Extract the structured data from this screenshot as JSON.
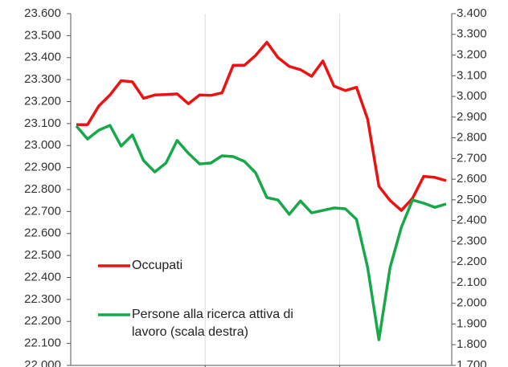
{
  "chart_data": {
    "type": "line",
    "categories": [
      null,
      null,
      null,
      null,
      null,
      null,
      null,
      null,
      null,
      null,
      null,
      null,
      null,
      null,
      null,
      null,
      null,
      null,
      null,
      null,
      null,
      null,
      null,
      null,
      null,
      null,
      null,
      null,
      null,
      null,
      null,
      null,
      null,
      null
    ],
    "series": [
      {
        "name": "Occupati",
        "color": "#ee1111",
        "values": [
          23095,
          23095,
          23180,
          23230,
          23295,
          23290,
          23215,
          23230,
          23232,
          23235,
          23190,
          23230,
          23228,
          23240,
          23365,
          23365,
          23410,
          23470,
          23400,
          23360,
          23345,
          23315,
          23385,
          23270,
          23250,
          23265,
          23120,
          22815,
          22750,
          22705,
          22760,
          22860,
          22855,
          22840
        ]
      },
      {
        "name": "Persone alla ricerca attiva di lavoro (scala destra)",
        "color": "#17a84a",
        "axis": "y2",
        "values": [
          2857,
          2794,
          2837,
          2860,
          2760,
          2814,
          2690,
          2635,
          2678,
          2787,
          2725,
          2674,
          2678,
          2713,
          2709,
          2686,
          2631,
          2511,
          2499,
          2430,
          2495,
          2437,
          2449,
          2461,
          2457,
          2406,
          2173,
          1824,
          2173,
          2367,
          2499,
          2484,
          2464,
          2480
        ]
      }
    ],
    "ylim": [
      22000,
      23600
    ],
    "yticks": [
      {
        "value": 22000,
        "label": "22.000"
      },
      {
        "value": 22100,
        "label": "22.100"
      },
      {
        "value": 22200,
        "label": "22.200"
      },
      {
        "value": 22300,
        "label": "22.300"
      },
      {
        "value": 22400,
        "label": "22.400"
      },
      {
        "value": 22500,
        "label": "22.500"
      },
      {
        "value": 22600,
        "label": "22.600"
      },
      {
        "value": 22700,
        "label": "22.700"
      },
      {
        "value": 22800,
        "label": "22.800"
      },
      {
        "value": 22900,
        "label": "22.900"
      },
      {
        "value": 23000,
        "label": "23.000"
      },
      {
        "value": 23100,
        "label": "23.100"
      },
      {
        "value": 23200,
        "label": "23.200"
      },
      {
        "value": 23300,
        "label": "23.300"
      },
      {
        "value": 23400,
        "label": "23.400"
      },
      {
        "value": 23500,
        "label": "23.500"
      },
      {
        "value": 23600,
        "label": "23.600"
      }
    ],
    "y2lim": [
      1700,
      3400
    ],
    "y2ticks": [
      {
        "value": 1700,
        "label": "1.700"
      },
      {
        "value": 1800,
        "label": "1.800"
      },
      {
        "value": 1900,
        "label": "1.900"
      },
      {
        "value": 2000,
        "label": "2.000"
      },
      {
        "value": 2100,
        "label": "2.100"
      },
      {
        "value": 2200,
        "label": "2.200"
      },
      {
        "value": 2300,
        "label": "2.300"
      },
      {
        "value": 2400,
        "label": "2.400"
      },
      {
        "value": 2500,
        "label": "2.500"
      },
      {
        "value": 2600,
        "label": "2.600"
      },
      {
        "value": 2700,
        "label": "2.700"
      },
      {
        "value": 2800,
        "label": "2.800"
      },
      {
        "value": 2900,
        "label": "2.900"
      },
      {
        "value": 3000,
        "label": "3.000"
      },
      {
        "value": 3100,
        "label": "3.100"
      },
      {
        "value": 3200,
        "label": "3.200"
      },
      {
        "value": 3300,
        "label": "3.300"
      },
      {
        "value": 3400,
        "label": "3.400"
      }
    ]
  }
}
